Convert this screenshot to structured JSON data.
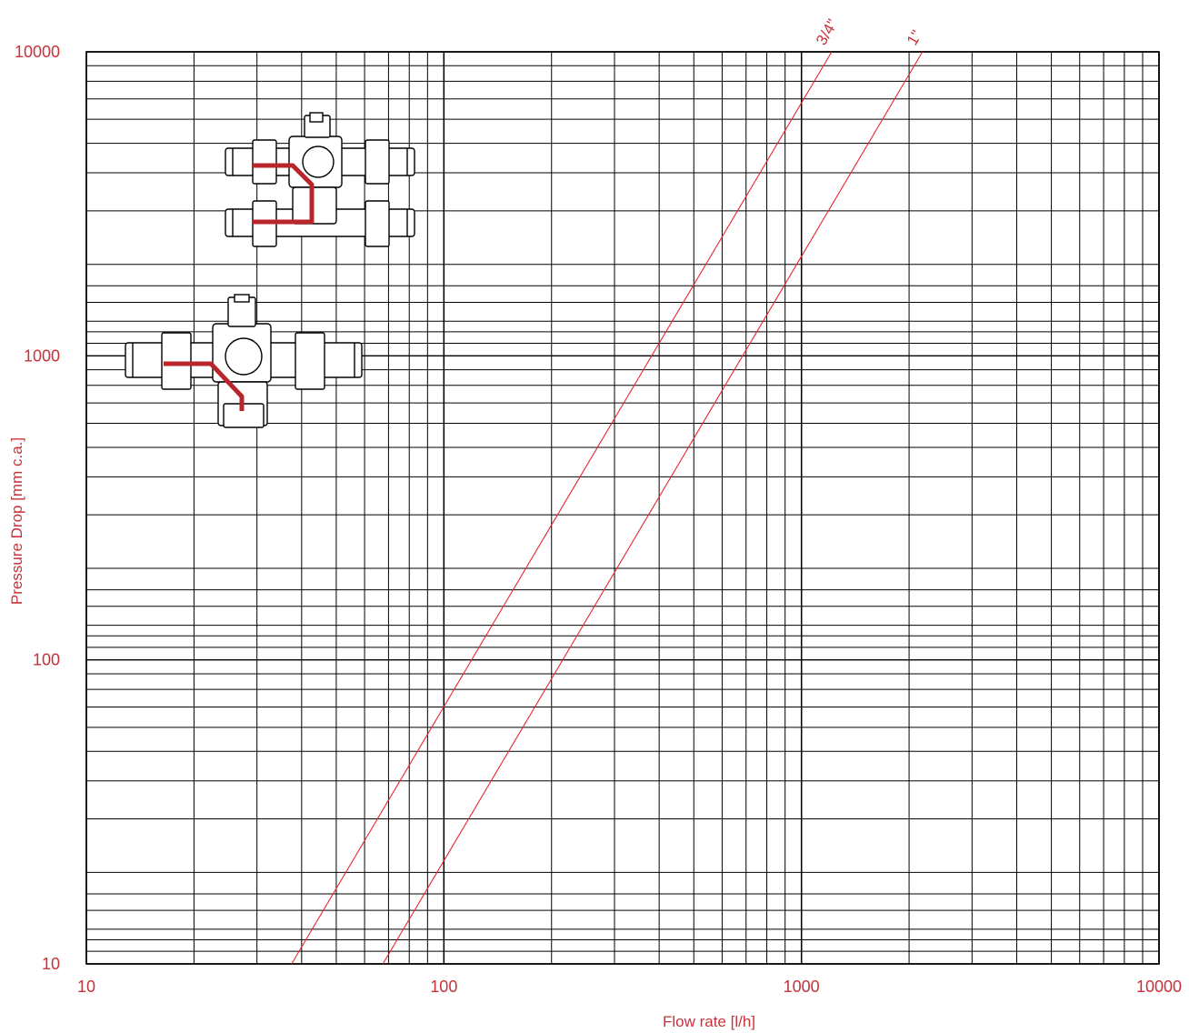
{
  "colors": {
    "accent": "#c8323a",
    "grid": "#000000",
    "series": "#e8282f"
  },
  "chart_data": {
    "type": "line",
    "title": "",
    "xlabel": "Flow rate [l/h]",
    "ylabel": "Pressure Drop [mm c.a.]",
    "xscale": "log",
    "yscale": "log",
    "xlim": [
      10,
      10000
    ],
    "ylim": [
      10,
      10000
    ],
    "grid": true,
    "x_ticks": [
      "10",
      "100",
      "1000",
      "10000"
    ],
    "y_ticks": [
      "10",
      "100",
      "1000",
      "10000"
    ],
    "series": [
      {
        "name": "3/4\"",
        "x": [
          37.5,
          1215
        ],
        "y": [
          10,
          10000
        ]
      },
      {
        "name": "1\"",
        "x": [
          67.5,
          2180
        ],
        "y": [
          10,
          10000
        ]
      }
    ],
    "annotations": [
      "valve-diagram-double",
      "valve-diagram-single"
    ]
  }
}
